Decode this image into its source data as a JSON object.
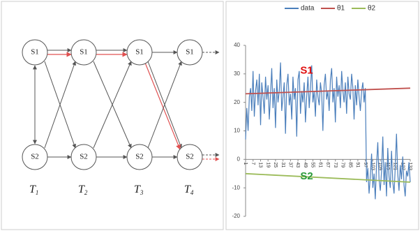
{
  "diagram": {
    "states": [
      "S1",
      "S2"
    ],
    "times": [
      {
        "base": "T",
        "sub": "1"
      },
      {
        "base": "T",
        "sub": "2"
      },
      {
        "base": "T",
        "sub": "3"
      },
      {
        "base": "T",
        "sub": "4"
      }
    ]
  },
  "chart_data": {
    "type": "line",
    "series": [
      {
        "name": "data",
        "color": "#4a7ebb",
        "x": [
          1,
          2,
          3,
          4,
          5,
          6,
          7,
          8,
          9,
          10,
          11,
          12,
          13,
          14,
          15,
          16,
          17,
          18,
          19,
          20,
          21,
          22,
          23,
          24,
          25,
          26,
          27,
          28,
          29,
          30,
          31,
          32,
          33,
          34,
          35,
          36,
          37,
          38,
          39,
          40,
          41,
          42,
          43,
          44,
          45,
          46,
          47,
          48,
          49,
          50,
          51,
          52,
          53,
          54,
          55,
          56,
          57,
          58,
          59,
          60,
          61,
          62,
          63,
          64,
          65,
          66,
          67,
          68,
          69,
          70,
          71,
          72,
          73,
          74,
          75,
          76,
          77,
          78,
          79,
          80,
          81,
          82,
          83,
          84,
          85,
          86,
          87,
          88,
          89,
          90,
          91,
          92,
          93,
          94,
          95,
          96,
          97,
          98,
          99,
          100,
          101,
          102,
          103,
          104,
          105,
          106,
          107,
          108,
          109,
          110,
          111,
          112,
          113,
          114,
          115,
          116,
          117,
          118,
          119,
          120,
          121,
          122,
          123,
          124,
          125,
          126,
          127,
          128,
          129,
          130,
          131,
          132,
          133
        ],
        "values": [
          7,
          18,
          10,
          22,
          25,
          17,
          31,
          15,
          24,
          28,
          19,
          30,
          12,
          27,
          22,
          16,
          29,
          21,
          26,
          14,
          23,
          32,
          18,
          25,
          11,
          28,
          20,
          24,
          34,
          17,
          22,
          27,
          9,
          26,
          30,
          19,
          23,
          14,
          29,
          21,
          25,
          8,
          28,
          31,
          16,
          24,
          20,
          27,
          13,
          22,
          29,
          18,
          25,
          33,
          20,
          24,
          15,
          28,
          22,
          19,
          27,
          23,
          10,
          26,
          30,
          21,
          24,
          17,
          28,
          32,
          20,
          25,
          13,
          29,
          22,
          26,
          18,
          31,
          24,
          20,
          27,
          16,
          29,
          23,
          21,
          30,
          25,
          14,
          26,
          19,
          28,
          22,
          17,
          24,
          27,
          20,
          25,
          -8,
          -3,
          -12,
          -6,
          2,
          -10,
          -5,
          -14,
          -2,
          6,
          -7,
          -11,
          -4,
          8,
          -9,
          -1,
          -13,
          4,
          -6,
          -10,
          3,
          -8,
          -12,
          -3,
          9,
          -5,
          -11,
          -2,
          -7,
          1,
          -9,
          -13,
          -4,
          -6,
          -1,
          -8
        ]
      },
      {
        "name": "θ1",
        "color": "#c0504d",
        "x": [
          1,
          133
        ],
        "values": [
          23,
          25
        ]
      },
      {
        "name": "θ2",
        "color": "#9bbb59",
        "x": [
          1,
          133
        ],
        "values": [
          -5,
          -8
        ]
      }
    ],
    "annotations": [
      {
        "text": "S1",
        "color": "#e01010",
        "x": 50,
        "y": 31
      },
      {
        "text": "S2",
        "color": "#2a9a3a",
        "x": 50,
        "y": -6
      }
    ],
    "xlim": [
      1,
      133
    ],
    "xticks": [
      1,
      7,
      13,
      19,
      25,
      31,
      37,
      43,
      49,
      55,
      61,
      67,
      73,
      79,
      85,
      91,
      97,
      103,
      109,
      115,
      121,
      127,
      133
    ],
    "ylim": [
      -20,
      40
    ],
    "yticks": [
      40,
      30,
      20,
      10,
      0,
      -10,
      -20
    ]
  }
}
